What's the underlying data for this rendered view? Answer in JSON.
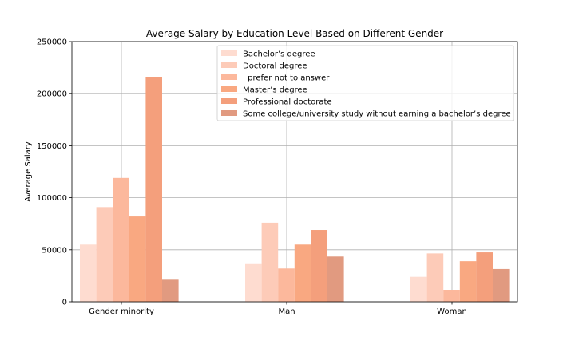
{
  "chart_data": {
    "type": "bar",
    "title": "Average Salary by Education Level Based on Different Gender",
    "xlabel": "",
    "ylabel": "Average Salary",
    "categories": [
      "Gender minority",
      "Man",
      "Woman"
    ],
    "ylim": [
      0,
      250000
    ],
    "yticks": [
      0,
      50000,
      100000,
      150000,
      200000,
      250000
    ],
    "grid": true,
    "legend_position": "top-right",
    "series": [
      {
        "name": "Bachelor’s degree",
        "color": "#fedcd0",
        "values": [
          55000,
          37000,
          24000
        ]
      },
      {
        "name": "Doctoral degree",
        "color": "#fdcbb8",
        "values": [
          91000,
          76000,
          46500
        ]
      },
      {
        "name": "I prefer not to answer",
        "color": "#fcb89c",
        "values": [
          119000,
          32000,
          11500
        ]
      },
      {
        "name": "Master’s degree",
        "color": "#f9a881",
        "values": [
          82000,
          55000,
          39000
        ]
      },
      {
        "name": "Professional doctorate",
        "color": "#f49f7c",
        "values": [
          216000,
          69000,
          47500
        ]
      },
      {
        "name": "Some college/university study without earning a bachelor’s degree",
        "color": "#e19a80",
        "values": [
          22000,
          43500,
          31500
        ]
      }
    ]
  }
}
